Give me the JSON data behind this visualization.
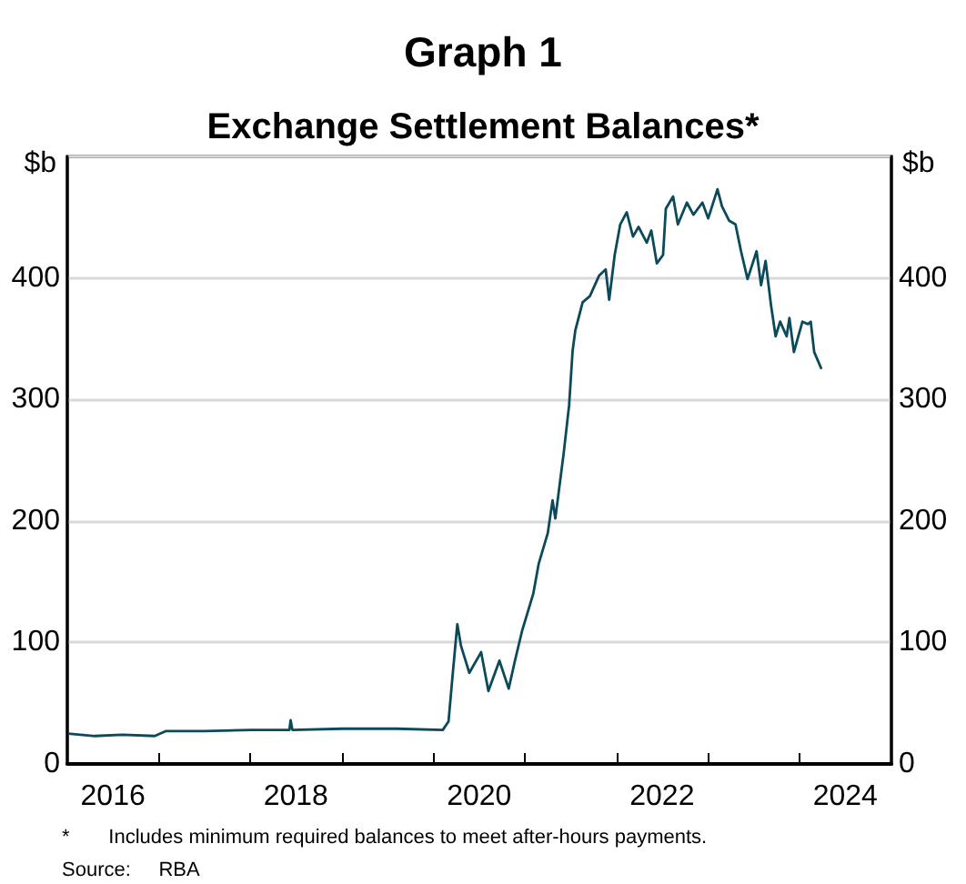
{
  "chart_data": {
    "type": "line",
    "title": "Graph 1",
    "subtitle": "Exchange Settlement Balances*",
    "ylabel": "$b",
    "y2label": "$b",
    "x": [
      "2016-01-04",
      "2016-04-20",
      "2016-08-08",
      "2016-12-15",
      "2017-01-27",
      "2017-07-01",
      "2018-01-02",
      "2018-06-05",
      "2018-06-10",
      "2018-06-17",
      "2019-01-02",
      "2019-08-08",
      "2020-02-07",
      "2020-03-01",
      "2020-03-16",
      "2020-04-05",
      "2020-04-20",
      "2020-05-23",
      "2020-07-09",
      "2020-08-07",
      "2020-09-20",
      "2020-10-27",
      "2020-11-21",
      "2020-12-20",
      "2021-02-02",
      "2021-02-24",
      "2021-04-01",
      "2021-04-20",
      "2021-05-01",
      "2021-06-03",
      "2021-06-25",
      "2021-07-09",
      "2021-07-20",
      "2021-08-18",
      "2021-09-16",
      "2021-10-23",
      "2021-11-18",
      "2021-12-02",
      "2021-12-24",
      "2022-01-15",
      "2022-02-10",
      "2022-03-07",
      "2022-03-29",
      "2022-05-01",
      "2022-05-19",
      "2022-06-10",
      "2022-07-05",
      "2022-07-16",
      "2022-08-14",
      "2022-09-02",
      "2022-10-08",
      "2022-11-03",
      "2022-12-09",
      "2023-01-01",
      "2023-02-07",
      "2023-02-25",
      "2023-03-26",
      "2023-04-20",
      "2023-05-12",
      "2023-06-07",
      "2023-07-13",
      "2023-07-31",
      "2023-08-18",
      "2023-09-09",
      "2023-09-27",
      "2023-10-15",
      "2023-11-10",
      "2023-11-21",
      "2023-12-09",
      "2024-01-12",
      "2024-02-03",
      "2024-02-14",
      "2024-02-28",
      "2024-03-28"
    ],
    "series": [
      {
        "color": "#0b4a5a",
        "values": [
          25,
          23,
          24,
          23,
          27,
          27,
          28,
          28,
          36,
          28,
          29,
          29,
          28,
          35,
          70,
          115,
          97,
          75,
          92,
          60,
          85,
          62,
          85,
          110,
          140,
          165,
          190,
          217,
          202,
          255,
          295,
          340,
          357,
          380,
          385,
          402,
          407,
          382,
          419,
          444,
          454,
          434,
          442,
          429,
          439,
          412,
          419,
          457,
          467,
          444,
          462,
          452,
          462,
          449,
          473,
          459,
          447,
          444,
          422,
          399,
          422,
          394,
          414,
          377,
          352,
          364,
          352,
          367,
          339,
          364,
          362,
          364,
          339,
          325
        ]
      }
    ],
    "xlim": [
      "2016-01-01",
      "2025-01-01"
    ],
    "xticks": [
      {
        "value": "2016-07-01",
        "label": "2016"
      },
      {
        "value": "2017-01-01",
        "label": null
      },
      {
        "value": "2018-01-01",
        "label": null
      },
      {
        "value": "2018-07-01",
        "label": "2018"
      },
      {
        "value": "2019-01-01",
        "label": null
      },
      {
        "value": "2020-01-01",
        "label": null
      },
      {
        "value": "2020-07-01",
        "label": "2020"
      },
      {
        "value": "2021-01-01",
        "label": null
      },
      {
        "value": "2022-01-01",
        "label": null
      },
      {
        "value": "2022-07-01",
        "label": "2022"
      },
      {
        "value": "2023-01-01",
        "label": null
      },
      {
        "value": "2024-01-01",
        "label": null
      },
      {
        "value": "2024-07-01",
        "label": "2024"
      }
    ],
    "ylim": [
      0,
      500
    ],
    "yticks": [
      0,
      100,
      200,
      300,
      400
    ],
    "y2lim": [
      0,
      500
    ],
    "y2ticks": [
      0,
      100,
      200,
      300,
      400
    ],
    "grid": "y",
    "marker": "none",
    "line_style": "solid",
    "annotations": [
      "*       Includes minimum required balances to meet after-hours payments.",
      "Source:     RBA"
    ]
  }
}
